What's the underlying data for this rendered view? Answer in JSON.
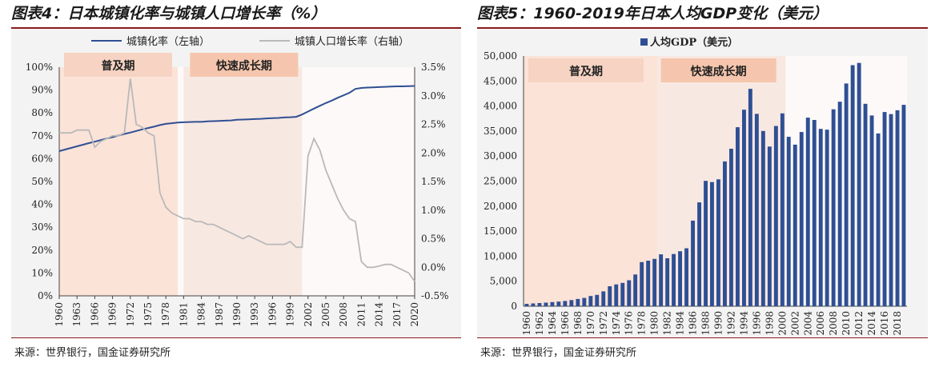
{
  "fig4": {
    "title": "图表4：日本城镇化率与城镇人口增长率（%）",
    "source": "来源：世界银行，国金证券研究所",
    "phases": [
      "普及期",
      "快速成长期"
    ],
    "chart_data": {
      "type": "line",
      "title": "",
      "legend": "top",
      "x": [
        1960,
        1961,
        1962,
        1963,
        1964,
        1965,
        1966,
        1967,
        1968,
        1969,
        1970,
        1971,
        1972,
        1973,
        1974,
        1975,
        1976,
        1977,
        1978,
        1979,
        1980,
        1981,
        1982,
        1983,
        1984,
        1985,
        1986,
        1987,
        1988,
        1989,
        1990,
        1991,
        1992,
        1993,
        1994,
        1995,
        1996,
        1997,
        1998,
        1999,
        2000,
        2001,
        2002,
        2003,
        2004,
        2005,
        2006,
        2007,
        2008,
        2009,
        2010,
        2011,
        2012,
        2013,
        2014,
        2015,
        2016,
        2017,
        2018,
        2019,
        2020
      ],
      "x_ticks": [
        1960,
        1963,
        1966,
        1969,
        1972,
        1975,
        1978,
        1981,
        1984,
        1987,
        1990,
        1993,
        1996,
        1999,
        2002,
        2005,
        2008,
        2011,
        2014,
        2017,
        2020
      ],
      "series": [
        {
          "name": "城镇化率（左轴）",
          "axis": "left",
          "color": "#2f4f94",
          "values": [
            63.3,
            64.0,
            64.7,
            65.4,
            66.1,
            66.8,
            67.4,
            68.1,
            68.8,
            69.4,
            70.1,
            70.8,
            71.4,
            72.1,
            72.8,
            73.4,
            74.0,
            74.7,
            75.2,
            75.5,
            75.8,
            75.9,
            76.0,
            76.1,
            76.1,
            76.3,
            76.4,
            76.5,
            76.6,
            76.7,
            77.0,
            77.1,
            77.2,
            77.3,
            77.4,
            77.6,
            77.7,
            77.8,
            78.0,
            78.1,
            78.3,
            79.3,
            80.6,
            81.9,
            83.1,
            84.3,
            85.4,
            86.6,
            87.7,
            88.8,
            90.5,
            90.9,
            91.1,
            91.2,
            91.3,
            91.4,
            91.5,
            91.6,
            91.6,
            91.7,
            91.8
          ]
        },
        {
          "name": "城镇人口增长率（右轴）",
          "axis": "right",
          "color": "#b9b9b9",
          "values": [
            2.35,
            2.35,
            2.35,
            2.4,
            2.4,
            2.4,
            2.1,
            2.2,
            2.25,
            2.3,
            2.3,
            2.35,
            3.3,
            2.5,
            2.45,
            2.35,
            2.3,
            1.3,
            1.05,
            0.95,
            0.9,
            0.85,
            0.85,
            0.8,
            0.8,
            0.75,
            0.75,
            0.7,
            0.65,
            0.6,
            0.55,
            0.5,
            0.55,
            0.5,
            0.45,
            0.4,
            0.4,
            0.4,
            0.4,
            0.45,
            0.35,
            0.35,
            1.95,
            2.25,
            2.05,
            1.7,
            1.45,
            1.2,
            1.0,
            0.85,
            0.8,
            0.1,
            0.0,
            0.0,
            0.02,
            0.05,
            0.05,
            0.0,
            -0.05,
            -0.1,
            -0.25
          ]
        }
      ],
      "y_left": {
        "min": 0,
        "max": 100,
        "step": 10,
        "ticks": [
          "0%",
          "10%",
          "20%",
          "30%",
          "40%",
          "50%",
          "60%",
          "70%",
          "80%",
          "90%",
          "100%"
        ]
      },
      "y_right": {
        "min": -0.5,
        "max": 3.5,
        "step": 0.5,
        "ticks": [
          "-0.5%",
          "0.0%",
          "0.5%",
          "1.0%",
          "1.5%",
          "2.0%",
          "2.5%",
          "3.0%",
          "3.5%"
        ]
      },
      "bands": [
        {
          "label": "普及期",
          "from": 1960,
          "to": 1980,
          "color": "#fbe3d8",
          "label_color": "#f6d3c2"
        },
        {
          "label": "快速成长期",
          "from": 1981,
          "to": 2001,
          "color": "#f8e8e2",
          "label_color": "#f5c6ad"
        }
      ]
    }
  },
  "fig5": {
    "title": "图表5：1960-2019年日本人均GDP变化（美元）",
    "source": "来源：世界银行，国金证券研究所",
    "phases": [
      "普及期",
      "快速成长期"
    ],
    "chart_data": {
      "type": "bar",
      "title": "",
      "legend": "top",
      "series": [
        {
          "name": "人均GDP（美元）",
          "color": "#2f4f94",
          "values": [
            479,
            564,
            633,
            717,
            836,
            919,
            1058,
            1229,
            1450,
            1669,
            2037,
            2272,
            2967,
            3997,
            4354,
            4659,
            5198,
            6335,
            8821,
            9105,
            9463,
            10361,
            9578,
            10425,
            10984,
            11585,
            17112,
            20745,
            25052,
            24813,
            25359,
            28926,
            31465,
            35766,
            39268,
            43440,
            38437,
            35022,
            31903,
            36027,
            38532,
            33846,
            32289,
            34808,
            37689,
            37218,
            35434,
            35275,
            39339,
            40855,
            44508,
            48168,
            48603,
            40455,
            38109,
            34524,
            38794,
            38387,
            39159,
            40247
          ]
        }
      ],
      "categories": [
        1960,
        1961,
        1962,
        1963,
        1964,
        1965,
        1966,
        1967,
        1968,
        1969,
        1970,
        1971,
        1972,
        1973,
        1974,
        1975,
        1976,
        1977,
        1978,
        1979,
        1980,
        1981,
        1982,
        1983,
        1984,
        1985,
        1986,
        1987,
        1988,
        1989,
        1990,
        1991,
        1992,
        1993,
        1994,
        1995,
        1996,
        1997,
        1998,
        1999,
        2000,
        2001,
        2002,
        2003,
        2004,
        2005,
        2006,
        2007,
        2008,
        2009,
        2010,
        2011,
        2012,
        2013,
        2014,
        2015,
        2016,
        2017,
        2018,
        2019
      ],
      "x_ticks": [
        1960,
        1962,
        1964,
        1966,
        1968,
        1970,
        1972,
        1974,
        1976,
        1978,
        1980,
        1982,
        1984,
        1986,
        1988,
        1990,
        1992,
        1994,
        1996,
        1998,
        2000,
        2002,
        2004,
        2006,
        2008,
        2010,
        2012,
        2014,
        2016,
        2018
      ],
      "y_axis": {
        "min": 0,
        "max": 50000,
        "step": 5000,
        "ticks": [
          "0",
          "5,000",
          "10,000",
          "15,000",
          "20,000",
          "25,000",
          "30,000",
          "35,000",
          "40,000",
          "45,000",
          "50,000"
        ]
      },
      "bands": [
        {
          "label": "普及期",
          "from": 1960,
          "to": 1980,
          "color": "#fbe3d8",
          "label_color": "#f6d3c2"
        },
        {
          "label": "快速成长期",
          "from": 1981,
          "to": 2000,
          "color": "#f8e8e2",
          "label_color": "#f5c6ad"
        }
      ]
    }
  }
}
